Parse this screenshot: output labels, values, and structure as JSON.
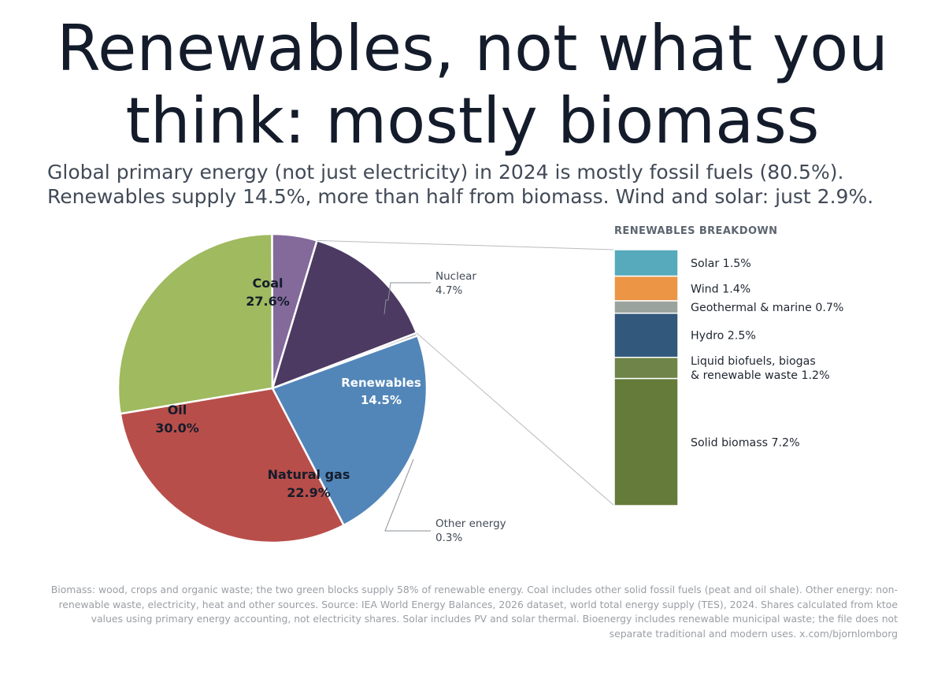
{
  "title": "Renewables, not what you think: mostly biomass",
  "subtitle": "Global primary energy (not just electricity) in 2024 is mostly fossil fuels (80.5%). Renewables supply 14.5%, more than half from biomass. Wind and solar: just 2.9%.",
  "footnote": "Biomass: wood, crops and organic waste; the two green blocks supply 58% of renewable energy. Coal includes other solid fossil fuels (peat and oil shale). Other energy: non-renewable waste, electricity, heat and other sources. Source: IEA World Energy Balances, 2026 dataset, world total energy supply (TES), 2024. Shares calculated from ktoe values using primary energy accounting, not electricity shares. Solar includes PV and solar thermal. Bioenergy includes renewable municipal waste; the file does not separate traditional and modern uses. x.com/bjornlomborg",
  "chart_data": [
    {
      "type": "pie",
      "slices": [
        {
          "label": "Coal",
          "value": 27.6,
          "value_label": "27.6%",
          "color": "#9fba5f",
          "label_color": "#141c2b",
          "label_placement": "inside"
        },
        {
          "label": "Nuclear",
          "value": 4.7,
          "value_label": "4.7%",
          "color": "#836a9b",
          "label_color": "#414a57",
          "label_placement": "outside"
        },
        {
          "label": "Renewables",
          "value": 14.5,
          "value_label": "14.5%",
          "color": "#4c3a62",
          "label_color": "#ffffff",
          "label_placement": "inside"
        },
        {
          "label": "Other energy",
          "value": 0.3,
          "value_label": "0.3%",
          "color": "#9a9ea4",
          "label_color": "#414a57",
          "label_placement": "outside"
        },
        {
          "label": "Natural gas",
          "value": 22.9,
          "value_label": "22.9%",
          "color": "#5286b9",
          "label_color": "#141c2b",
          "label_placement": "inside"
        },
        {
          "label": "Oil",
          "value": 30.0,
          "value_label": "30.0%",
          "color": "#b84e4a",
          "label_color": "#141c2b",
          "label_placement": "inside"
        }
      ]
    },
    {
      "type": "bar",
      "stacked": true,
      "title": "RENEWABLES BREAKDOWN",
      "series": [
        {
          "name": "Solar",
          "value": 1.5,
          "value_label": "1.5%",
          "color": "#56aabb"
        },
        {
          "name": "Wind",
          "value": 1.4,
          "value_label": "1.4%",
          "color": "#ec9545"
        },
        {
          "name": "Geothermal & marine",
          "value": 0.7,
          "value_label": "0.7%",
          "color": "#9aa39d"
        },
        {
          "name": "Hydro",
          "value": 2.5,
          "value_label": "2.5%",
          "color": "#32587c"
        },
        {
          "name": "Liquid biofuels, biogas\n& renewable waste",
          "value": 1.2,
          "value_label": "1.2%",
          "color": "#6f8448"
        },
        {
          "name": "Solid biomass",
          "value": 7.2,
          "value_label": "7.2%",
          "color": "#647b3a"
        }
      ]
    }
  ]
}
